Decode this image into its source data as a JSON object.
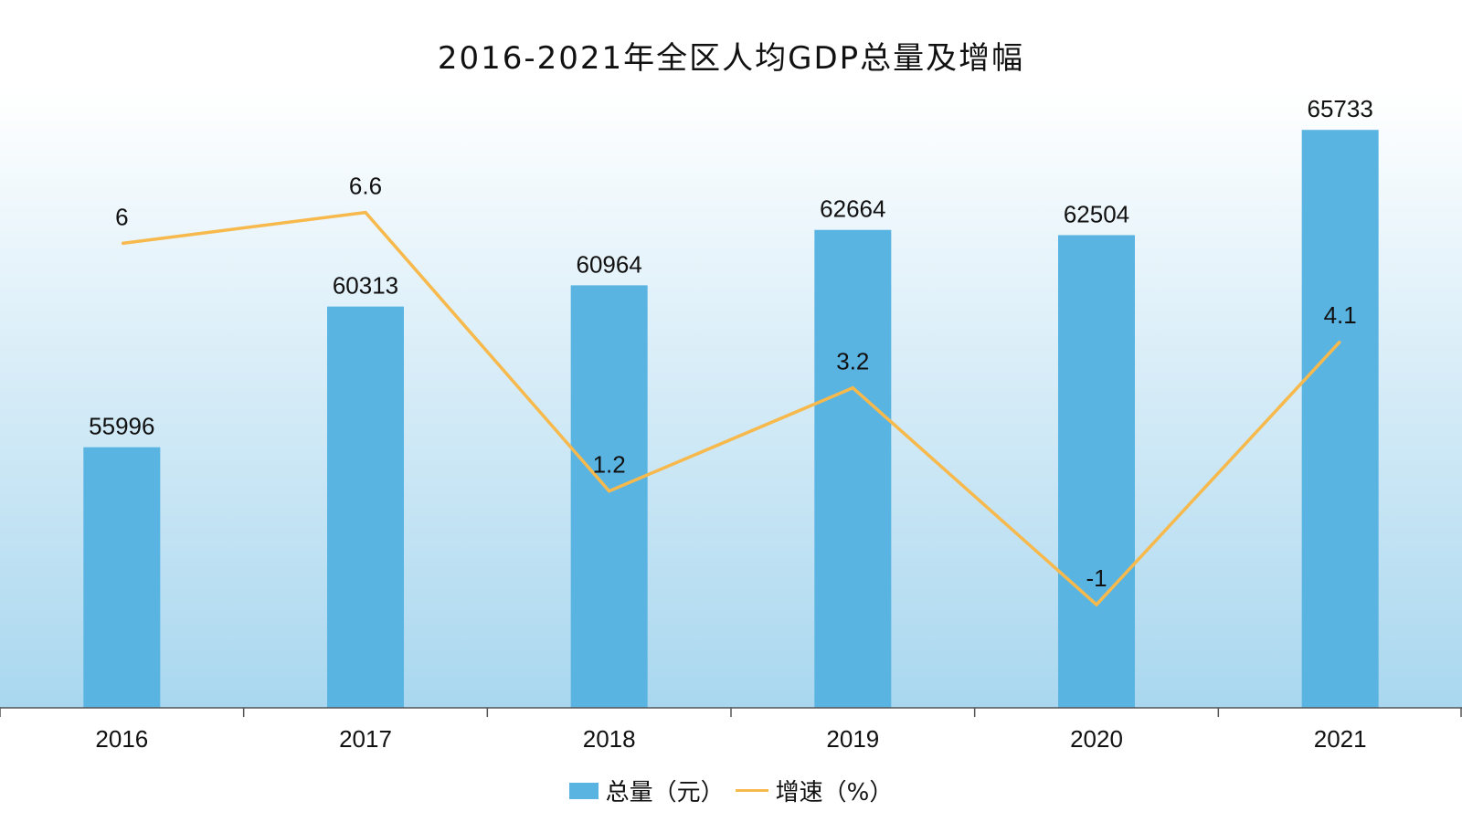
{
  "chart_data": {
    "type": "bar",
    "title": "2016-2021年全区人均GDP总量及增幅",
    "categories": [
      "2016",
      "2017",
      "2018",
      "2019",
      "2020",
      "2021"
    ],
    "series": [
      {
        "name": "总量（元）",
        "kind": "bar",
        "values": [
          55996,
          60313,
          60964,
          62664,
          62504,
          65733
        ],
        "color": "#5ab4e2"
      },
      {
        "name": "增速（%）",
        "kind": "line",
        "values": [
          6,
          6.6,
          1.2,
          3.2,
          -1,
          4.1
        ],
        "color": "#f7b94c"
      }
    ],
    "bar_axis_range": [
      48000,
      67000
    ],
    "line_axis_range": [
      -3,
      9
    ],
    "legend_position": "bottom",
    "grid": false,
    "background": {
      "top_color": "#ffffff",
      "bottom_color": "#a9d7ef"
    },
    "axis_color": "#555555"
  },
  "legend": {
    "bar_label": "总量（元）",
    "line_label": "增速（%）"
  }
}
